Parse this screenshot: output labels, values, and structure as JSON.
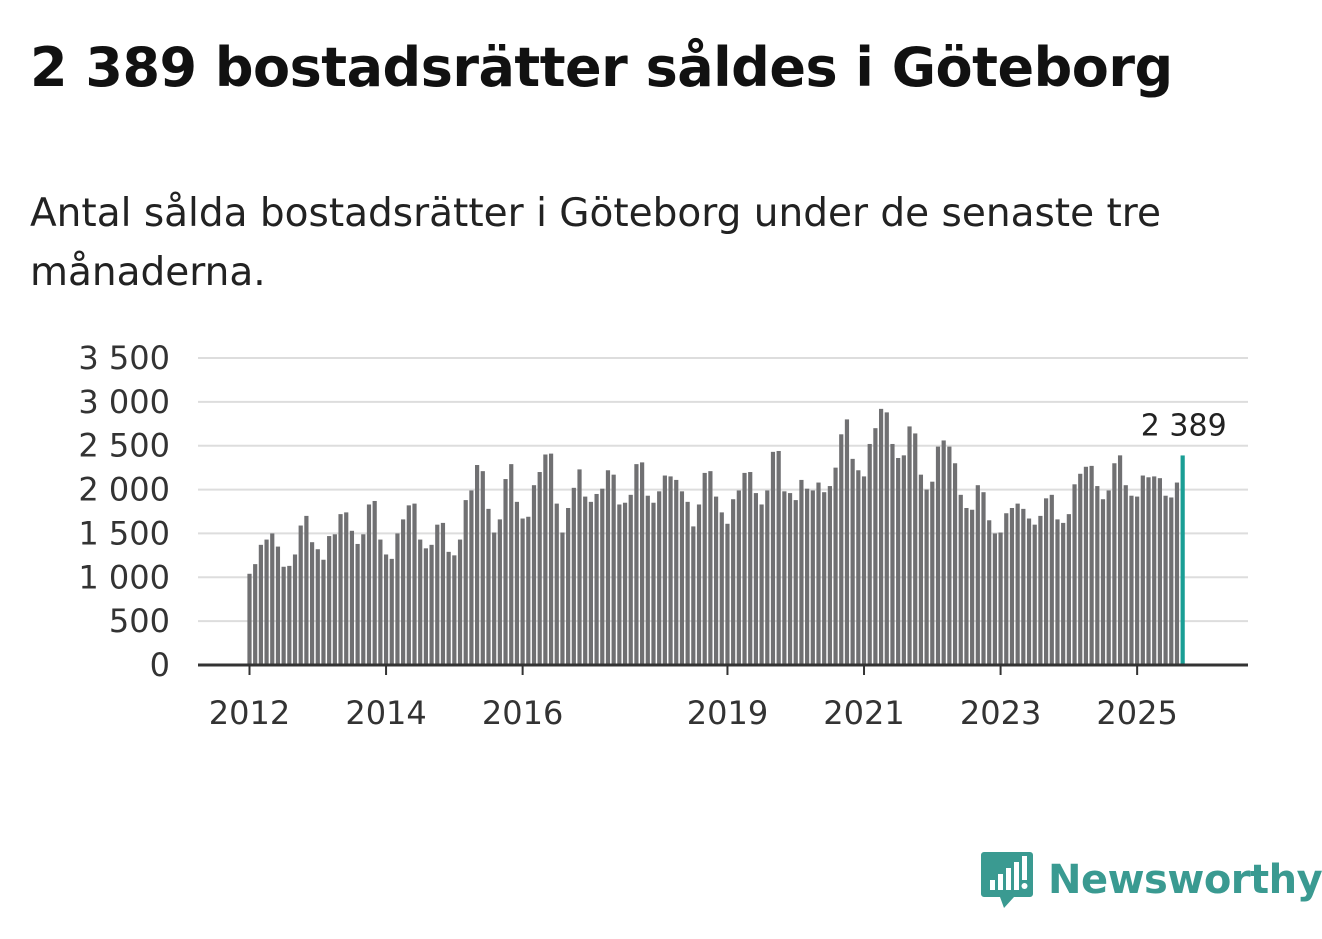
{
  "title": "2 389 bostadsrätter såldes i Göteborg",
  "subtitle": "Antal sålda bostadsrätter i Göteborg under de senaste tre månaderna.",
  "brand": {
    "name": "Newsworthy"
  },
  "colors": {
    "bar": "#707072",
    "highlight": "#1a9e95",
    "grid": "#dddddd",
    "axis": "#333333",
    "brand": "#3a9a91"
  },
  "chart_data": {
    "type": "bar",
    "title": "2 389 bostadsrätter såldes i Göteborg",
    "xlabel": "",
    "ylabel": "",
    "ylim": [
      0,
      3500
    ],
    "yticks": [
      0,
      500,
      1000,
      1500,
      2000,
      2500,
      3000,
      3500
    ],
    "ytick_labels": [
      "0",
      "500",
      "1 000",
      "1 500",
      "2 000",
      "2 500",
      "3 000",
      "3 500"
    ],
    "xtick_labels": [
      {
        "label": "2012",
        "index": 0
      },
      {
        "label": "2014",
        "index": 24
      },
      {
        "label": "2016",
        "index": 48
      },
      {
        "label": "2019",
        "index": 84
      },
      {
        "label": "2021",
        "index": 108
      },
      {
        "label": "2023",
        "index": 132
      },
      {
        "label": "2025",
        "index": 156
      }
    ],
    "first_period": "2012-01",
    "last_value_label": "2 389",
    "values": [
      1040,
      1150,
      1370,
      1430,
      1500,
      1350,
      1120,
      1130,
      1260,
      1590,
      1700,
      1400,
      1320,
      1200,
      1470,
      1490,
      1720,
      1740,
      1530,
      1380,
      1490,
      1830,
      1870,
      1430,
      1260,
      1210,
      1500,
      1660,
      1820,
      1840,
      1430,
      1330,
      1370,
      1600,
      1620,
      1290,
      1250,
      1430,
      1880,
      1990,
      2280,
      2210,
      1780,
      1510,
      1660,
      2120,
      2290,
      1860,
      1670,
      1690,
      2050,
      2200,
      2400,
      2410,
      1840,
      1510,
      1790,
      2020,
      2230,
      1920,
      1860,
      1950,
      2010,
      2220,
      2170,
      1830,
      1850,
      1940,
      2290,
      2310,
      1930,
      1850,
      1980,
      2160,
      2150,
      2110,
      1980,
      1860,
      1580,
      1830,
      2190,
      2210,
      1920,
      1740,
      1610,
      1890,
      1990,
      2190,
      2200,
      1960,
      1830,
      1990,
      2430,
      2440,
      1980,
      1960,
      1880,
      2110,
      2010,
      1990,
      2080,
      1970,
      2040,
      2250,
      2630,
      2800,
      2350,
      2220,
      2150,
      2520,
      2700,
      2920,
      2880,
      2520,
      2360,
      2390,
      2720,
      2640,
      2170,
      2000,
      2090,
      2490,
      2560,
      2490,
      2300,
      1940,
      1790,
      1770,
      2050,
      1970,
      1650,
      1500,
      1510,
      1730,
      1790,
      1840,
      1780,
      1670,
      1600,
      1700,
      1900,
      1940,
      1660,
      1620,
      1720,
      2060,
      2180,
      2260,
      2270,
      2040,
      1890,
      1990,
      2300,
      2390,
      2050,
      1930,
      1920,
      2160,
      2140,
      2150,
      2130,
      1930,
      1910,
      2080,
      2389
    ]
  }
}
